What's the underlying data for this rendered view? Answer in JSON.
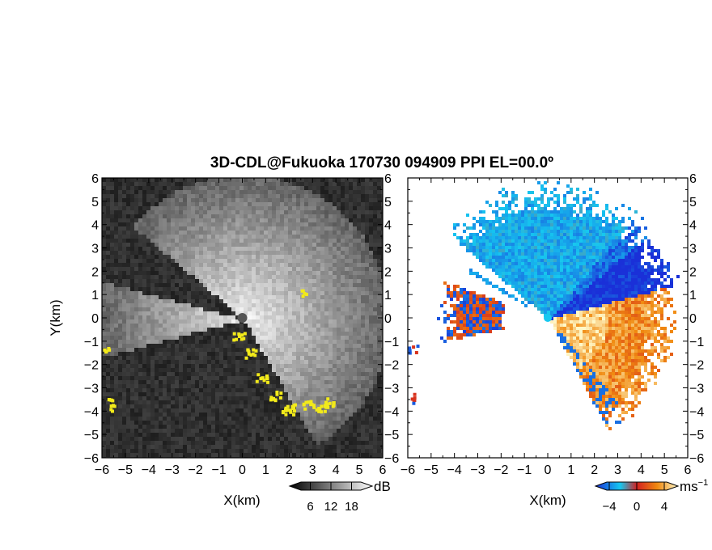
{
  "chart_data": {
    "title": "3D-CDL@Fukuoka 170730 094909 PPI EL=00.0º",
    "panels": [
      {
        "type": "heatmap",
        "quantity_colormap": "grayscale",
        "xlabel": "X(km)",
        "ylabel": "Y(km)",
        "xlim": [
          -6,
          6
        ],
        "ylim": [
          -6,
          6
        ],
        "xticks": [
          "−6",
          "−5",
          "−4",
          "−3",
          "−2",
          "−1",
          "0",
          "1",
          "2",
          "3",
          "4",
          "5",
          "6"
        ],
        "yticks": [
          "−6",
          "−5",
          "−4",
          "−3",
          "−2",
          "−1",
          "0",
          "1",
          "2",
          "3",
          "4",
          "5",
          "6"
        ],
        "colorbar": {
          "unit": "dB",
          "ticks": [
            "6",
            "12",
            "18"
          ],
          "range": [
            0,
            24
          ]
        },
        "highlight_color": "#f2ea1a"
      },
      {
        "type": "heatmap",
        "quantity_colormap": "diverging",
        "xlabel": "X(km)",
        "ylabel": "",
        "xlim": [
          -6,
          6
        ],
        "ylim": [
          -6,
          6
        ],
        "xticks": [
          "−6",
          "−5",
          "−4",
          "−3",
          "−2",
          "−1",
          "0",
          "1",
          "2",
          "3",
          "4",
          "5",
          "6"
        ],
        "yticks": [
          "−6",
          "−5",
          "−4",
          "−3",
          "−2",
          "−1",
          "0",
          "1",
          "2",
          "3",
          "4",
          "5",
          "6"
        ],
        "colorbar": {
          "unit": "ms",
          "unit_exp": "−1",
          "ticks": [
            "−4",
            "0",
            "4"
          ],
          "range": [
            -6,
            6
          ]
        }
      }
    ]
  },
  "colors": {
    "gray_dark": "#101010",
    "gray_light": "#f0f0f0",
    "vel_neg_far": "#1a30d8",
    "vel_neg_near": "#16c8f0",
    "vel_zero": "#d22020",
    "vel_pos_near": "#f08a10",
    "vel_pos_far": "#fff8c8"
  }
}
